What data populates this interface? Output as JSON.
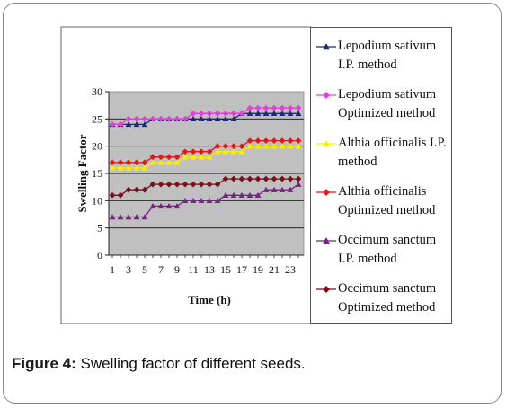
{
  "chart_data": {
    "type": "line",
    "ylabel": "Swelling Factor",
    "xlabel": "Time (h)",
    "ylim": [
      0,
      30
    ],
    "yticks": [
      "0",
      "5",
      "10",
      "15",
      "20",
      "25",
      "30"
    ],
    "x": [
      1,
      2,
      3,
      4,
      5,
      6,
      7,
      8,
      9,
      10,
      11,
      12,
      13,
      14,
      15,
      16,
      17,
      18,
      19,
      20,
      21,
      22,
      23,
      24
    ],
    "xtick_labels": [
      "1",
      "3",
      "5",
      "7",
      "9",
      "11",
      "13",
      "15",
      "17",
      "19",
      "21",
      "23"
    ],
    "grid": "horizontal",
    "plot_background": "#c0c0c0",
    "legend_placement": "right",
    "series": [
      {
        "name_lines": [
          "Lepodium sativum",
          "I.P. method"
        ],
        "color": "#1f2a6e",
        "marker": "triangle",
        "values": [
          24,
          24,
          24,
          24,
          24,
          25,
          25,
          25,
          25,
          25,
          25,
          25,
          25,
          25,
          25,
          25,
          26,
          26,
          26,
          26,
          26,
          26,
          26,
          26
        ]
      },
      {
        "name_lines": [
          "Lepodium sativum",
          "Optimized method"
        ],
        "color": "#e040d8",
        "marker": "diamond",
        "values": [
          24,
          24,
          25,
          25,
          25,
          25,
          25,
          25,
          25,
          25,
          26,
          26,
          26,
          26,
          26,
          26,
          26,
          27,
          27,
          27,
          27,
          27,
          27,
          27
        ]
      },
      {
        "name_lines": [
          "Althia officinalis I.P.",
          "method"
        ],
        "color": "#f5f000",
        "marker": "triangle",
        "values": [
          16,
          16,
          16,
          16,
          16,
          17,
          17,
          17,
          17,
          18,
          18,
          18,
          18,
          19,
          19,
          19,
          19,
          20,
          20,
          20,
          20,
          20,
          20,
          20
        ]
      },
      {
        "name_lines": [
          "Althia officinalis",
          "Optimized method"
        ],
        "color": "#e01818",
        "marker": "diamond",
        "values": [
          17,
          17,
          17,
          17,
          17,
          18,
          18,
          18,
          18,
          19,
          19,
          19,
          19,
          20,
          20,
          20,
          20,
          21,
          21,
          21,
          21,
          21,
          21,
          21
        ]
      },
      {
        "name_lines": [
          "Occimum sanctum",
          "I.P. method"
        ],
        "color": "#7a1f8a",
        "marker": "triangle",
        "values": [
          7,
          7,
          7,
          7,
          7,
          9,
          9,
          9,
          9,
          10,
          10,
          10,
          10,
          10,
          11,
          11,
          11,
          11,
          11,
          12,
          12,
          12,
          12,
          13
        ]
      },
      {
        "name_lines": [
          "Occimum sanctum",
          "Optimized method"
        ],
        "color": "#7a0f18",
        "marker": "diamond",
        "values": [
          11,
          11,
          12,
          12,
          12,
          13,
          13,
          13,
          13,
          13,
          13,
          13,
          13,
          13,
          14,
          14,
          14,
          14,
          14,
          14,
          14,
          14,
          14,
          14
        ]
      }
    ]
  },
  "caption": {
    "label": "Figure 4:",
    "text": " Swelling factor of different seeds."
  }
}
